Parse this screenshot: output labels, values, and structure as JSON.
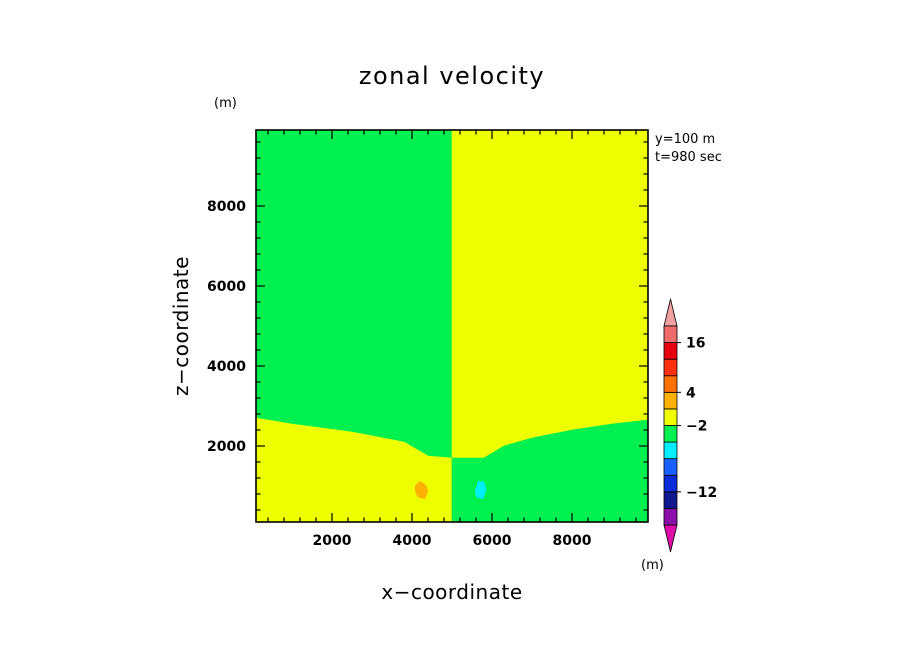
{
  "chart_data": {
    "type": "heatmap",
    "title": "zonal velocity",
    "xlabel": "x−coordinate",
    "ylabel": "z−coordinate",
    "x_unit": "(m)",
    "z_unit": "(m)",
    "xlim": [
      100,
      9900
    ],
    "ylim": [
      100,
      9900
    ],
    "xticks": [
      2000,
      4000,
      6000,
      8000
    ],
    "yticks": [
      2000,
      4000,
      6000,
      8000
    ],
    "annotations": [
      "y=100 m",
      "t=980 sec"
    ],
    "colorbar": {
      "unit": "(m)",
      "levels": [
        {
          "color": "#e00ea9"
        },
        {
          "color": "#8a0fa8"
        },
        {
          "color": "#101890"
        },
        {
          "color": "#0b2ad8"
        },
        {
          "color": "#1860ff"
        },
        {
          "color": "#00eeff"
        },
        {
          "color": "#00f050"
        },
        {
          "color": "#eeff00"
        },
        {
          "color": "#ffb000"
        },
        {
          "color": "#ff7000"
        },
        {
          "color": "#ff2f0f"
        },
        {
          "color": "#e80010"
        },
        {
          "color": "#f06c6c"
        },
        {
          "color": "#f0a0a0"
        }
      ],
      "labels": [
        {
          "text": "16",
          "after_level": 11
        },
        {
          "text": "4",
          "after_level": 8
        },
        {
          "text": "−2",
          "after_level": 6
        },
        {
          "text": "−12",
          "after_level": 2
        }
      ]
    },
    "regions": [
      {
        "name": "upper-left-green",
        "color": "#00f050",
        "polygon": [
          [
            100,
            9900
          ],
          [
            5000,
            9900
          ],
          [
            5000,
            1700
          ],
          [
            4400,
            1750
          ],
          [
            3800,
            2100
          ],
          [
            2500,
            2350
          ],
          [
            1000,
            2550
          ],
          [
            100,
            2700
          ]
        ]
      },
      {
        "name": "upper-right-yellow",
        "color": "#eeff00",
        "polygon": [
          [
            5000,
            9900
          ],
          [
            9900,
            9900
          ],
          [
            9900,
            2650
          ],
          [
            9000,
            2550
          ],
          [
            8000,
            2400
          ],
          [
            7000,
            2200
          ],
          [
            6300,
            2000
          ],
          [
            5800,
            1700
          ],
          [
            5000,
            1700
          ]
        ]
      },
      {
        "name": "lower-left-yellow",
        "color": "#eeff00",
        "polygon": [
          [
            100,
            100
          ],
          [
            5000,
            100
          ],
          [
            5000,
            1700
          ],
          [
            4400,
            1750
          ],
          [
            3800,
            2100
          ],
          [
            2500,
            2350
          ],
          [
            1000,
            2550
          ],
          [
            100,
            2700
          ]
        ]
      },
      {
        "name": "lower-right-green",
        "color": "#00f050",
        "polygon": [
          [
            5000,
            100
          ],
          [
            9900,
            100
          ],
          [
            9900,
            2650
          ],
          [
            9000,
            2550
          ],
          [
            8000,
            2400
          ],
          [
            7000,
            2200
          ],
          [
            6300,
            2000
          ],
          [
            5800,
            1700
          ],
          [
            5000,
            1700
          ]
        ]
      },
      {
        "name": "orange-blob",
        "color": "#ffb000",
        "polygon": [
          [
            4080,
            1000
          ],
          [
            4200,
            1120
          ],
          [
            4330,
            1040
          ],
          [
            4400,
            880
          ],
          [
            4320,
            680
          ],
          [
            4160,
            720
          ],
          [
            4080,
            860
          ]
        ]
      },
      {
        "name": "cyan-blob",
        "color": "#00eeff",
        "polygon": [
          [
            5580,
            880
          ],
          [
            5660,
            1120
          ],
          [
            5800,
            1100
          ],
          [
            5850,
            920
          ],
          [
            5780,
            680
          ],
          [
            5620,
            720
          ]
        ]
      }
    ]
  }
}
